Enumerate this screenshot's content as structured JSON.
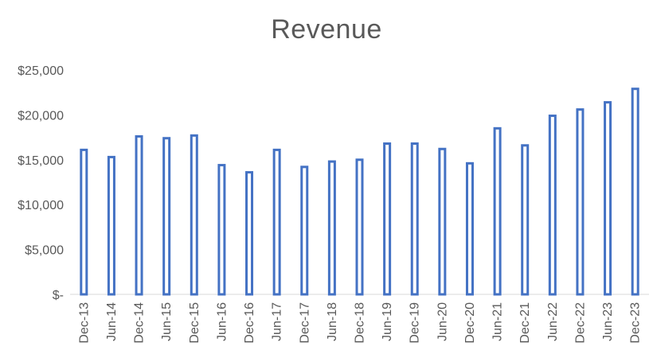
{
  "chart_data": {
    "type": "bar",
    "title": "Revenue",
    "xlabel": "",
    "ylabel": "",
    "categories": [
      "Dec-13",
      "Jun-14",
      "Dec-14",
      "Jun-15",
      "Dec-15",
      "Jun-16",
      "Dec-16",
      "Jun-17",
      "Dec-17",
      "Jun-18",
      "Dec-18",
      "Jun-19",
      "Dec-19",
      "Jun-20",
      "Dec-20",
      "Jun-21",
      "Dec-21",
      "Jun-22",
      "Dec-22",
      "Jun-23",
      "Dec-23"
    ],
    "values": [
      16100,
      15300,
      17600,
      17400,
      17700,
      14400,
      13600,
      16100,
      14200,
      14800,
      15000,
      16800,
      16800,
      16200,
      14600,
      18500,
      16600,
      19900,
      20600,
      21400,
      22900
    ],
    "ylim": [
      0,
      25000
    ],
    "yticks": [
      0,
      5000,
      10000,
      15000,
      20000,
      25000
    ],
    "ytick_labels": [
      "$-",
      "$5,000",
      "$10,000",
      "$15,000",
      "$20,000",
      "$25,000"
    ],
    "grid": false,
    "legend": "none",
    "colors": {
      "bar_outline": "#4472C4",
      "bar_fill": "#ffffff",
      "text": "#595959",
      "baseline": "#d9d9d9"
    }
  }
}
